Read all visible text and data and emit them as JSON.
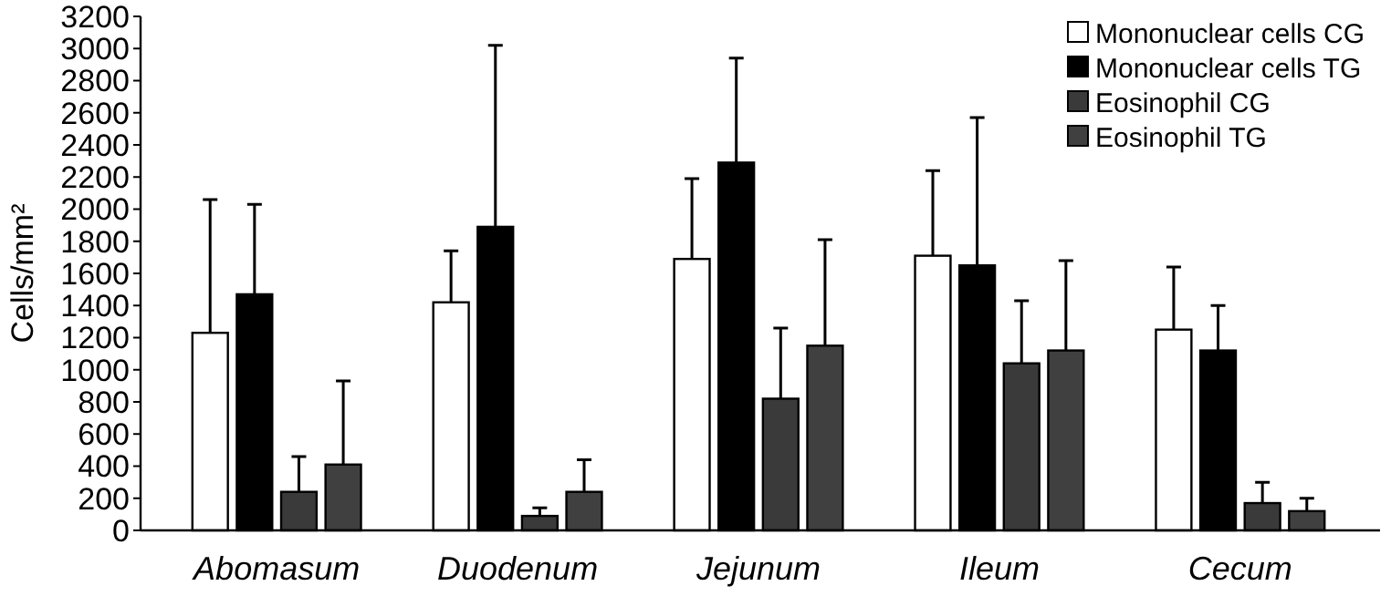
{
  "chart_data": {
    "type": "bar",
    "ylabel": "Cells/mm²",
    "categories": [
      "Abomasum",
      "Duodenum",
      "Jejunum",
      "Ileum",
      "Cecum"
    ],
    "ylim": [
      0,
      3200
    ],
    "yticks": [
      0,
      200,
      400,
      600,
      800,
      1000,
      1200,
      1400,
      1600,
      1800,
      2000,
      2200,
      2400,
      2600,
      2800,
      3000,
      3200
    ],
    "grid": false,
    "legend": "top right",
    "series": [
      {
        "name": "Mononuclear cells CG",
        "color": "#ffffff",
        "values": [
          1230,
          1420,
          1690,
          1710,
          1250
        ],
        "errors": [
          [
            1230,
            2060
          ],
          [
            1420,
            1740
          ],
          [
            1690,
            2190
          ],
          [
            1710,
            2240
          ],
          [
            1250,
            1640
          ]
        ]
      },
      {
        "name": "Mononuclear cells TG",
        "color": "#000000",
        "values": [
          1470,
          1890,
          2290,
          1650,
          1120
        ],
        "errors": [
          [
            1470,
            2030
          ],
          [
            1890,
            3020
          ],
          [
            2290,
            2940
          ],
          [
            1650,
            2570
          ],
          [
            1120,
            1400
          ]
        ]
      },
      {
        "name": "Eosinophil CG",
        "color": "#3a3a3a",
        "values": [
          240,
          90,
          820,
          1040,
          170
        ],
        "errors": [
          [
            240,
            460
          ],
          [
            90,
            140
          ],
          [
            820,
            1260
          ],
          [
            1040,
            1430
          ],
          [
            170,
            300
          ]
        ]
      },
      {
        "name": "Eosinophil TG",
        "color": "#404040",
        "values": [
          410,
          240,
          1150,
          1120,
          120
        ],
        "errors": [
          [
            410,
            930
          ],
          [
            240,
            440
          ],
          [
            1150,
            1810
          ],
          [
            1120,
            1680
          ],
          [
            120,
            200
          ]
        ]
      }
    ]
  }
}
